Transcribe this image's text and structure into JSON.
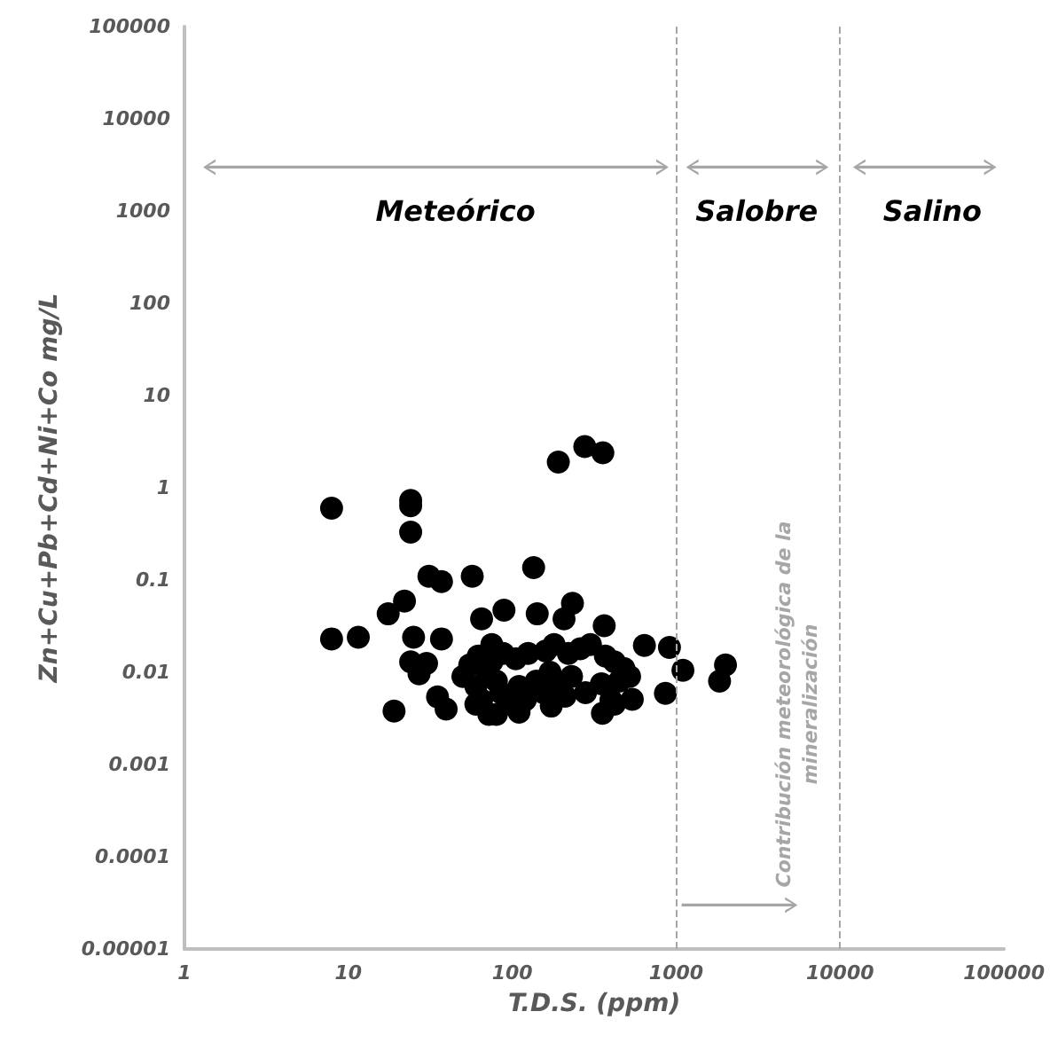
{
  "chart_data": {
    "type": "scatter",
    "xlabel": "T.D.S. (ppm)",
    "ylabel": "Zn+Cu+Pb+Cd+Ni+Co mg/L",
    "log": "xy",
    "xlim": [
      1,
      100000
    ],
    "xticks": [
      1,
      10,
      100,
      1000,
      10000,
      100000
    ],
    "ylim": [
      1e-05,
      100000
    ],
    "yticks": [
      {
        "value": 1e-05,
        "label": "0.00001"
      },
      0.0001,
      0.001,
      0.01,
      0.1,
      1,
      10,
      100,
      1000,
      10000,
      100000
    ],
    "grid": false,
    "marker": "circle",
    "ref_lines": [
      {
        "axis": "x",
        "value": 1000,
        "color": "#a6a6a6",
        "line_style": "dashed"
      },
      {
        "axis": "x",
        "value": 10000,
        "color": "#a6a6a6",
        "line_style": "dashed"
      }
    ],
    "annotations": [
      "Meteórico",
      "Salobre",
      "Salino",
      "Contribución meteorológica de la mineralización"
    ],
    "series": [
      {
        "color": "#000000",
        "x": [
          7.9,
          24,
          24,
          24,
          31,
          37,
          22,
          17.5,
          7.9,
          11.5,
          25,
          37,
          24,
          30,
          27,
          35,
          39.5,
          19,
          191,
          277,
          357,
          57,
          135,
          89,
          65,
          142,
          233,
          364,
          207,
          640,
          910,
          1100,
          2000,
          1840,
          860,
          540,
          173,
          355,
          50,
          55,
          60,
          62,
          65,
          70,
          72,
          75,
          80,
          85,
          88,
          95,
          105,
          110,
          120,
          125,
          140,
          155,
          160,
          170,
          180,
          210,
          220,
          230,
          260,
          280,
          350,
          370,
          400,
          420,
          450,
          480,
          520,
          80,
          110,
          60,
          420,
          75,
          180,
          300
        ],
        "values": [
          0.6,
          0.73,
          0.64,
          0.33,
          0.11,
          0.096,
          0.059,
          0.043,
          0.023,
          0.024,
          0.024,
          0.023,
          0.013,
          0.0125,
          0.0096,
          0.0054,
          0.004,
          0.0038,
          1.9,
          2.8,
          2.4,
          0.11,
          0.136,
          0.047,
          0.038,
          0.043,
          0.056,
          0.032,
          0.038,
          0.0195,
          0.0186,
          0.0105,
          0.012,
          0.008,
          0.0059,
          0.0051,
          0.0043,
          0.0036,
          0.009,
          0.012,
          0.007,
          0.015,
          0.005,
          0.01,
          0.0035,
          0.013,
          0.008,
          0.006,
          0.016,
          0.0045,
          0.014,
          0.007,
          0.005,
          0.016,
          0.008,
          0.006,
          0.017,
          0.01,
          0.007,
          0.0055,
          0.016,
          0.009,
          0.018,
          0.006,
          0.0075,
          0.015,
          0.005,
          0.013,
          0.008,
          0.011,
          0.009,
          0.0035,
          0.0037,
          0.0045,
          0.0045,
          0.02,
          0.02,
          0.02
        ]
      }
    ]
  }
}
